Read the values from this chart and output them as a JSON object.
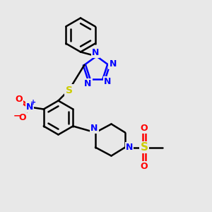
{
  "bg_color": "#e8e8e8",
  "bond_color": "#000000",
  "bond_width": 1.8,
  "atom_colors": {
    "N": "#0000ff",
    "O": "#ff0000",
    "S": "#cccc00",
    "C": "#000000"
  },
  "font_size": 8
}
